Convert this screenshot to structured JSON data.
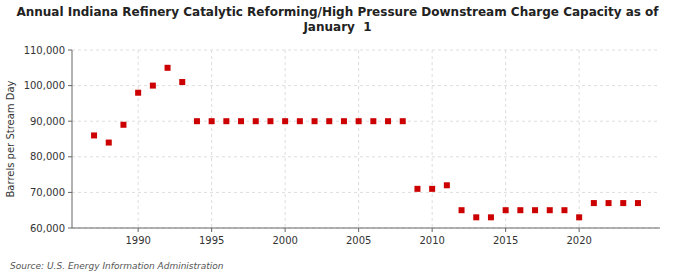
{
  "chart_data": {
    "type": "scatter",
    "title": "Annual Indiana Refinery Catalytic Reforming/High Pressure Downstream Charge Capacity as of\nJanuary  1",
    "ylabel": "Barrels per Stream Day",
    "annotations": [
      "Source: U.S. Energy Information Administration"
    ],
    "color": "#cc0000",
    "marker": "square",
    "grid": true,
    "x": [
      1987,
      1988,
      1989,
      1990,
      1991,
      1992,
      1993,
      1994,
      1995,
      1996,
      1997,
      1998,
      1999,
      2000,
      2001,
      2002,
      2003,
      2004,
      2005,
      2006,
      2007,
      2008,
      2009,
      2010,
      2011,
      2012,
      2013,
      2014,
      2015,
      2016,
      2017,
      2018,
      2019,
      2020,
      2021,
      2022,
      2023,
      2024
    ],
    "values": [
      86000,
      84000,
      89000,
      98000,
      100000,
      105000,
      101000,
      90000,
      90000,
      90000,
      90000,
      90000,
      90000,
      90000,
      90000,
      90000,
      90000,
      90000,
      90000,
      90000,
      90000,
      90000,
      71000,
      71000,
      72000,
      65000,
      63000,
      63000,
      65000,
      65000,
      65000,
      65000,
      65000,
      63000,
      67000,
      67000,
      67000,
      67000
    ],
    "xlim": [
      1985.5,
      2025.5
    ],
    "xticks": [
      1990,
      1995,
      2000,
      2005,
      2010,
      2015,
      2020
    ],
    "ylim": [
      60000,
      110000
    ],
    "yticks": [
      {
        "value": 60000,
        "label": "60,000"
      },
      {
        "value": 70000,
        "label": "70,000"
      },
      {
        "value": 80000,
        "label": "80,000"
      },
      {
        "value": 90000,
        "label": "90,000"
      },
      {
        "value": 100000,
        "label": "100,000"
      },
      {
        "value": 110000,
        "label": "110,000"
      }
    ]
  }
}
